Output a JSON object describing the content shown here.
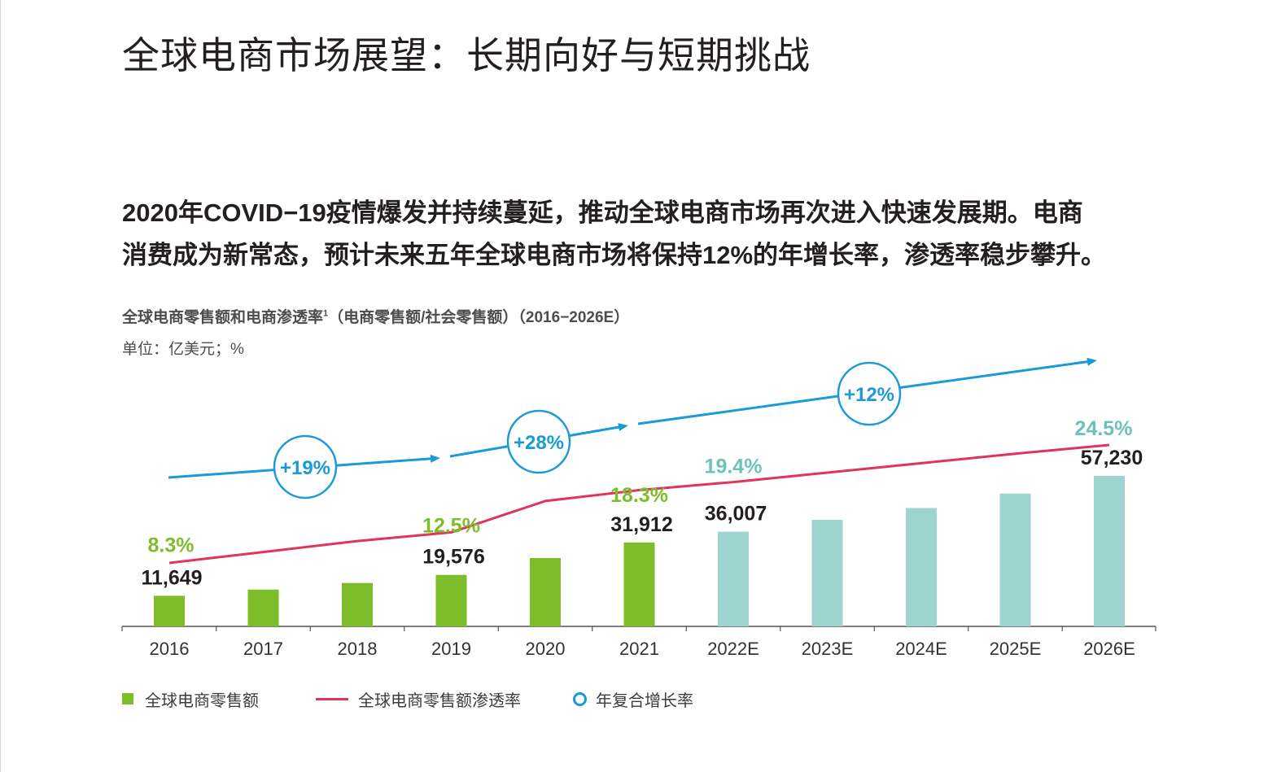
{
  "page": {
    "title": "全球电商市场展望：长期向好与短期挑战",
    "summary_lines": [
      "2020年COVID−19疫情爆发并持续蔓延，推动全球电商市场再次进入快速发展期。电商",
      "消费成为新常态，预计未来五年全球电商市场将保持12%的年增长率，渗透率稳步攀升。"
    ]
  },
  "chart_data": {
    "type": "bar+line",
    "title": "全球电商零售额和电商渗透率",
    "title_footnote": "1",
    "title_suffix": "（电商零售额/社会零售额）（2016−2026E）",
    "unit_label": "单位：亿美元；%",
    "categories": [
      "2016",
      "2017",
      "2018",
      "2019",
      "2020",
      "2021",
      "2022E",
      "2023E",
      "2024E",
      "2025E",
      "2026E"
    ],
    "series": [
      {
        "name": "全球电商零售额",
        "kind": "bar",
        "values": [
          11649,
          14000,
          16500,
          19576,
          26000,
          31912,
          36007,
          40500,
          45000,
          50500,
          57230
        ],
        "value_labels": [
          "11,649",
          "",
          "",
          "19,576",
          "",
          "31,912",
          "36,007",
          "",
          "",
          "",
          "57,230"
        ],
        "colors": {
          "actual": "#7dbd2a",
          "forecast": "#9dd4cf"
        }
      },
      {
        "name": "全球电商零售额渗透率",
        "kind": "line",
        "unit": "%",
        "values": [
          8.3,
          9.8,
          11.3,
          12.5,
          16.8,
          18.3,
          19.4,
          20.7,
          22.0,
          23.3,
          24.5
        ],
        "value_labels": [
          "8.3%",
          "",
          "",
          "12.5%",
          "",
          "18.3%",
          "19.4%",
          "",
          "",
          "",
          "24.5%"
        ],
        "color": "#e0345c"
      }
    ],
    "cagr": {
      "name": "年复合增长率",
      "color": "#1a9ad6",
      "segments": [
        {
          "label": "+19%",
          "from": "2016",
          "to": "2019"
        },
        {
          "label": "+28%",
          "from": "2019",
          "to": "2021"
        },
        {
          "label": "+12%",
          "from": "2021",
          "to": "2026E"
        }
      ]
    },
    "legend": [
      "全球电商零售额",
      "全球电商零售额渗透率",
      "年复合增长率"
    ],
    "colors": {
      "actual_label": "#7dbd2a",
      "forecast_label": "#6cc3b5",
      "bar_value_label": "#231f20",
      "axis": "#555555",
      "tick_label": "#333333"
    }
  }
}
